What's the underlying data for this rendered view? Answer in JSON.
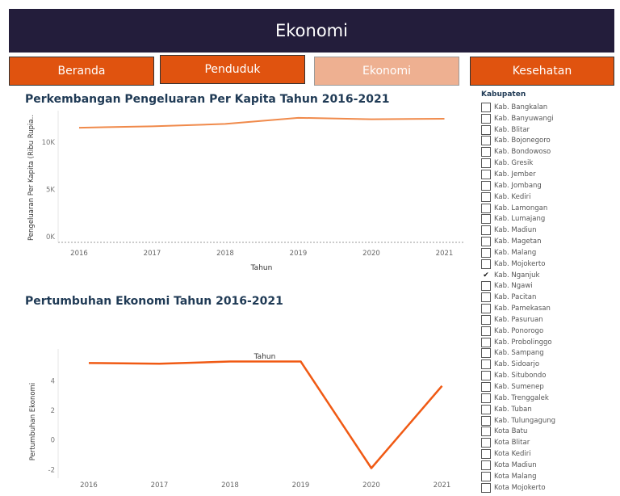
{
  "header": {
    "title": "Ekonomi"
  },
  "nav": {
    "beranda": "Beranda",
    "penduduk": "Penduduk",
    "ekonomi": "Ekonomi",
    "kesehatan": "Kesehatan"
  },
  "colors": {
    "header_bg": "#231d3b",
    "nav_inactive": "#e0530f",
    "nav_active": "#eeb091",
    "line1": "#f08a4b",
    "line2": "#f05a14"
  },
  "chart_data": [
    {
      "type": "line",
      "title": "Perkembangan Pengeluaran Per Kapita Tahun 2016-2021",
      "xlabel": "Tahun",
      "ylabel": "Pengeluaran Per Kapita (Ribu Rupia..",
      "x": [
        "2016",
        "2017",
        "2018",
        "2019",
        "2020",
        "2021"
      ],
      "y_ticks": [
        "0K",
        "5K",
        "10K"
      ],
      "ylim": [
        0,
        12500
      ],
      "series": [
        {
          "values": [
            11550,
            11700,
            11950,
            12600,
            12450,
            12500
          ]
        }
      ]
    },
    {
      "type": "line",
      "title": "Pertumbuhan Ekonomi Tahun 2016-2021",
      "xlabel": "Tahun",
      "ylabel": "Pertumbuhan Ekonomi",
      "x": [
        "2016",
        "2017",
        "2018",
        "2019",
        "2020",
        "2021"
      ],
      "y_ticks": [
        "-2",
        "0",
        "2",
        "4"
      ],
      "ylim": [
        -2.2,
        5.6
      ],
      "series": [
        {
          "values": [
            5.2,
            5.15,
            5.3,
            5.3,
            -1.9,
            3.65
          ]
        }
      ]
    }
  ],
  "filter": {
    "title": "Kabupaten",
    "checked_index": 15,
    "items": [
      "Kab. Bangkalan",
      "Kab. Banyuwangi",
      "Kab. Blitar",
      "Kab. Bojonegoro",
      "Kab. Bondowoso",
      "Kab. Gresik",
      "Kab. Jember",
      "Kab. Jombang",
      "Kab. Kediri",
      "Kab. Lamongan",
      "Kab. Lumajang",
      "Kab. Madiun",
      "Kab. Magetan",
      "Kab. Malang",
      "Kab. Mojokerto",
      "Kab. Nganjuk",
      "Kab. Ngawi",
      "Kab. Pacitan",
      "Kab. Pamekasan",
      "Kab. Pasuruan",
      "Kab. Ponorogo",
      "Kab. Probolinggo",
      "Kab. Sampang",
      "Kab. Sidoarjo",
      "Kab. Situbondo",
      "Kab. Sumenep",
      "Kab. Trenggalek",
      "Kab. Tuban",
      "Kab. Tulungagung",
      "Kota Batu",
      "Kota Blitar",
      "Kota Kediri",
      "Kota Madiun",
      "Kota Malang",
      "Kota Mojokerto"
    ]
  }
}
